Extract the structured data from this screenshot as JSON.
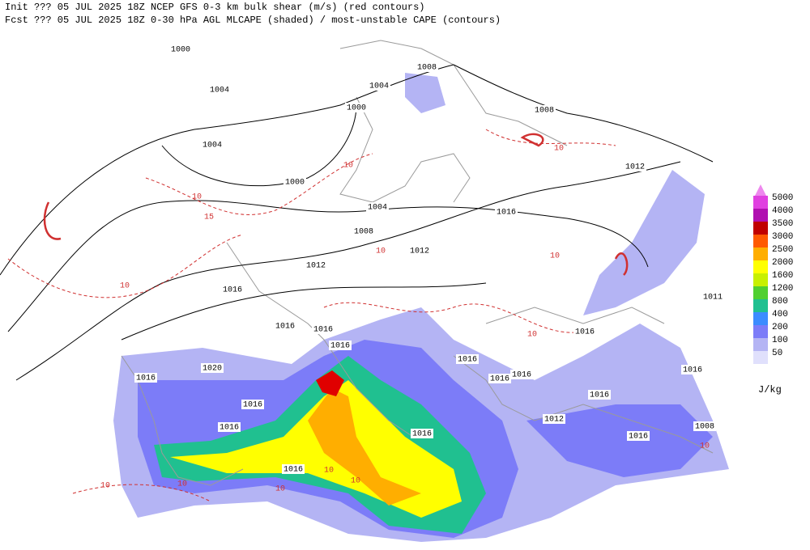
{
  "header": {
    "line1": "Init  ??? 05 JUL 2025 18Z  NCEP GFS 0-3 km bulk shear (m/s) (red contours)",
    "line2": "Fcst ??? 05 JUL 2025 18Z  0-30 hPa AGL MLCAPE (shaded) / most-unstable CAPE (contours)"
  },
  "legend": {
    "unit": "J/kg",
    "levels": [
      {
        "value": 5000,
        "color": "#e040e0"
      },
      {
        "value": 4000,
        "color": "#b010b0"
      },
      {
        "value": 3500,
        "color": "#c00000"
      },
      {
        "value": 3000,
        "color": "#ff5a00"
      },
      {
        "value": 2500,
        "color": "#ffae00"
      },
      {
        "value": 2000,
        "color": "#ffff00"
      },
      {
        "value": 1600,
        "color": "#c8f000"
      },
      {
        "value": 1200,
        "color": "#50d030"
      },
      {
        "value": 800,
        "color": "#20c090"
      },
      {
        "value": 400,
        "color": "#3c8cff"
      },
      {
        "value": 200,
        "color": "#7c7cf8"
      },
      {
        "value": 100,
        "color": "#b4b4f4"
      },
      {
        "value": 50,
        "color": "#e0e0fc"
      }
    ]
  },
  "pressure_labels": [
    1000,
    1004,
    1008,
    1004,
    1000,
    1004,
    1000,
    1008,
    1012,
    1004,
    1008,
    1016,
    1012,
    1012,
    1016,
    1016,
    1016,
    1016,
    1016,
    1020,
    1016,
    1016,
    1016,
    1016,
    1016,
    1016,
    1016,
    1016,
    1016,
    1012,
    1016,
    1008,
    1016,
    1011
  ],
  "shear_labels": [
    10,
    10,
    15,
    10,
    10,
    10,
    10,
    10,
    10,
    10,
    10,
    10,
    10,
    10
  ]
}
